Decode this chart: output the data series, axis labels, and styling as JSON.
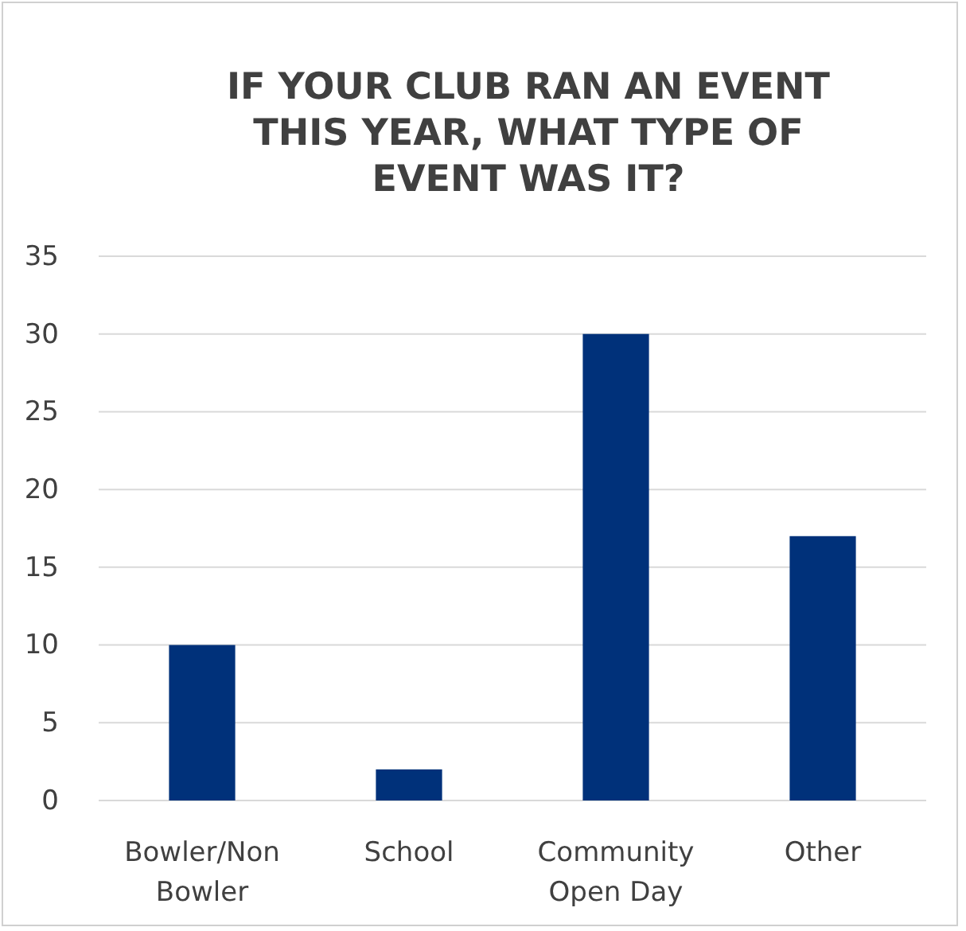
{
  "chart_data": {
    "type": "bar",
    "title": "IF YOUR CLUB RAN AN EVENT THIS YEAR, WHAT TYPE OF EVENT WAS IT?",
    "categories": [
      "Bowler/Non Bowler",
      "School",
      "Community Open Day",
      "Other"
    ],
    "values": [
      10,
      2,
      30,
      17
    ],
    "color": "#00317a",
    "ylim": [
      0,
      35
    ],
    "yticks": [
      0,
      5,
      10,
      15,
      20,
      25,
      30,
      35
    ],
    "grid": "y"
  }
}
